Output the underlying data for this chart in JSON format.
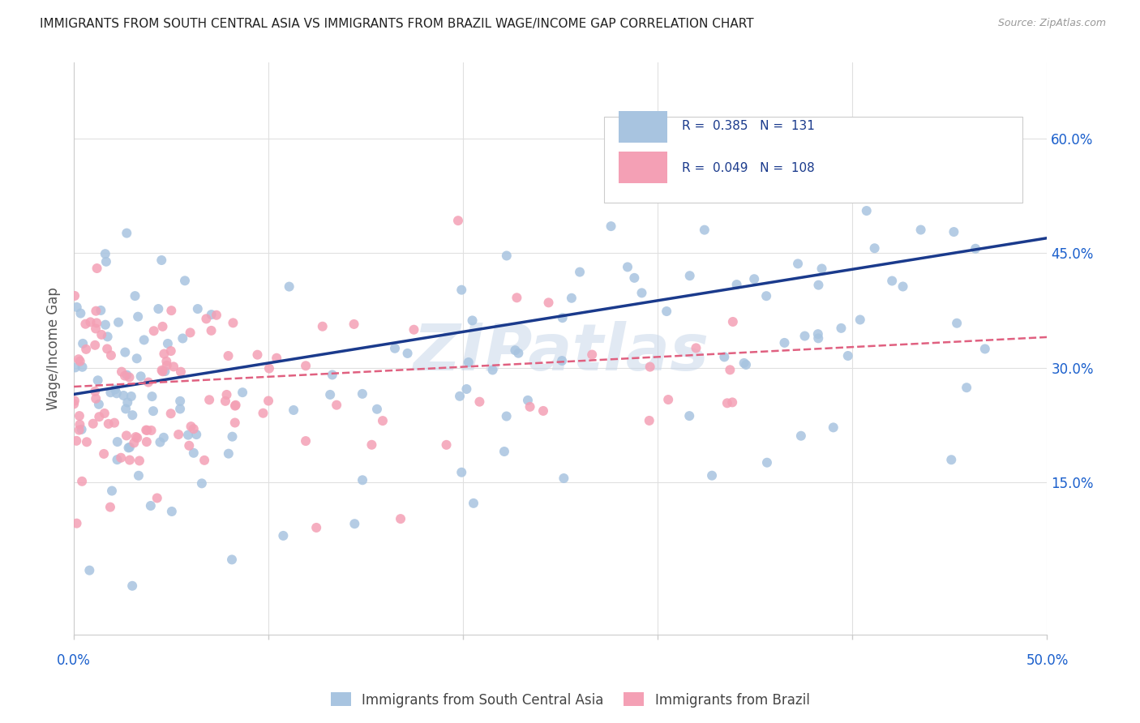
{
  "title": "IMMIGRANTS FROM SOUTH CENTRAL ASIA VS IMMIGRANTS FROM BRAZIL WAGE/INCOME GAP CORRELATION CHART",
  "source": "Source: ZipAtlas.com",
  "ylabel": "Wage/Income Gap",
  "ytick_labels": [
    "15.0%",
    "30.0%",
    "45.0%",
    "60.0%"
  ],
  "ytick_values": [
    0.15,
    0.3,
    0.45,
    0.6
  ],
  "xlim": [
    0.0,
    0.5
  ],
  "ylim": [
    -0.05,
    0.7
  ],
  "blue_R": 0.385,
  "blue_N": 131,
  "pink_R": 0.049,
  "pink_N": 108,
  "blue_color": "#a8c4e0",
  "pink_color": "#f4a0b5",
  "blue_line_color": "#1a3a8c",
  "pink_line_color": "#e06080",
  "legend_label_blue": "Immigrants from South Central Asia",
  "legend_label_pink": "Immigrants from Brazil",
  "watermark": "ZIPatlas",
  "background_color": "#ffffff",
  "grid_color": "#e0e0e0",
  "title_color": "#222222",
  "axis_label_color": "#1a5fcc",
  "legend_text_color": "#1a3a8c",
  "seed_blue": 7,
  "seed_pink": 13
}
